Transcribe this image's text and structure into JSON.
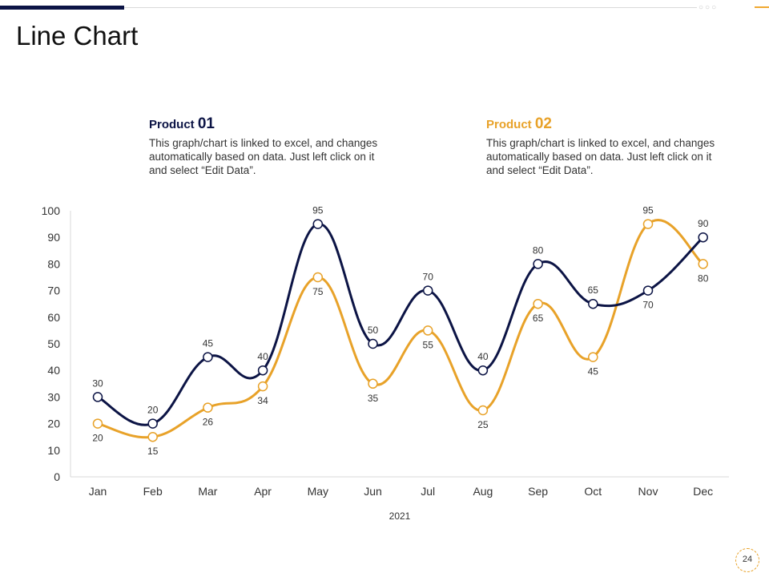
{
  "page": {
    "title": "Line Chart",
    "page_number": "24"
  },
  "legend": [
    {
      "name": "Product",
      "number": "01",
      "description": "This graph/chart is linked to excel, and changes automatically based on data. Just left click on it and select “Edit Data”.",
      "color": "#0c1445"
    },
    {
      "name": "Product",
      "number": "02",
      "description": "This graph/chart is linked to excel, and changes automatically based on data. Just left click on it and select “Edit Data”.",
      "color": "#e8a229"
    }
  ],
  "chart_data": {
    "type": "line",
    "categories": [
      "Jan",
      "Feb",
      "Mar",
      "Apr",
      "May",
      "Jun",
      "Jul",
      "Aug",
      "Sep",
      "Oct",
      "Nov",
      "Dec"
    ],
    "series": [
      {
        "name": "Product 01",
        "color": "#0c1445",
        "values": [
          30,
          20,
          45,
          40,
          95,
          50,
          70,
          40,
          80,
          65,
          70,
          90
        ]
      },
      {
        "name": "Product 02",
        "color": "#e8a229",
        "values": [
          20,
          15,
          26,
          34,
          75,
          35,
          55,
          25,
          65,
          45,
          95,
          80
        ]
      }
    ],
    "xlabel": "2021",
    "ylabel": "",
    "ylim": [
      0,
      100
    ],
    "yticks": [
      0,
      10,
      20,
      30,
      40,
      50,
      60,
      70,
      80,
      90,
      100
    ],
    "grid": false
  }
}
